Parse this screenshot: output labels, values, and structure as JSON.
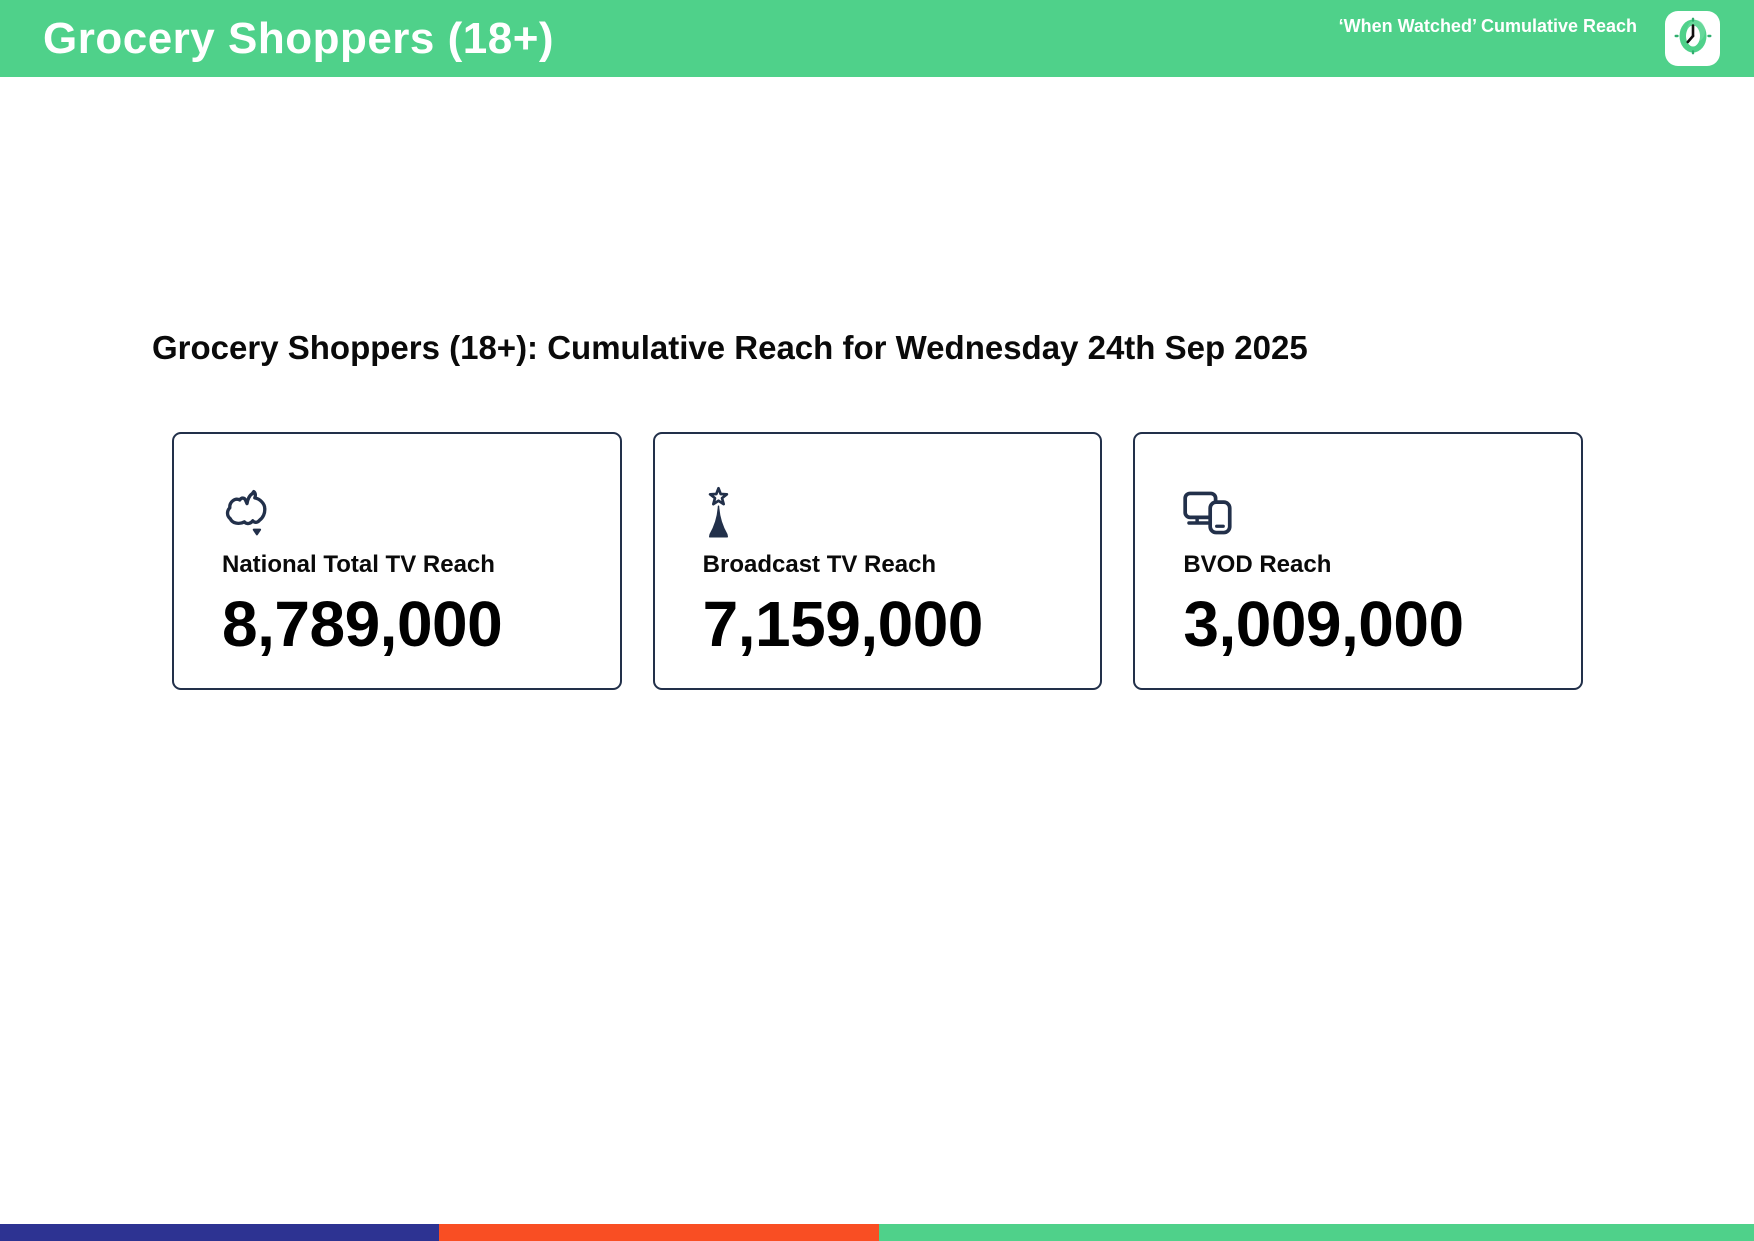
{
  "header": {
    "title": "Grocery Shoppers (18+)",
    "tagline": "‘When Watched’ Cumulative Reach",
    "logo_icon": "clock-icon"
  },
  "main": {
    "heading": "Grocery Shoppers (18+): Cumulative Reach for Wednesday 24th Sep 2025",
    "cards": [
      {
        "icon": "australia-map-icon",
        "label": "National Total TV Reach",
        "value": "8,789,000"
      },
      {
        "icon": "broadcast-tower-star-icon",
        "label": "Broadcast TV Reach",
        "value": "7,159,000"
      },
      {
        "icon": "tv-and-mobile-devices-icon",
        "label": "BVOD Reach",
        "value": "3,009,000"
      }
    ]
  },
  "footer": {
    "bar_segments": [
      {
        "name": "blue",
        "color": "#2D3392",
        "width_pct": 25.0
      },
      {
        "name": "orange",
        "color": "#F94E23",
        "width_pct": 25.1
      },
      {
        "name": "green",
        "color": "#4FD18A",
        "width_pct": 49.9
      }
    ]
  },
  "colors": {
    "brand_green": "#4FD18A",
    "navy": "#22304A",
    "bar_blue": "#2D3392",
    "bar_orange": "#F94E23",
    "text_black": "#0A0A0A"
  }
}
